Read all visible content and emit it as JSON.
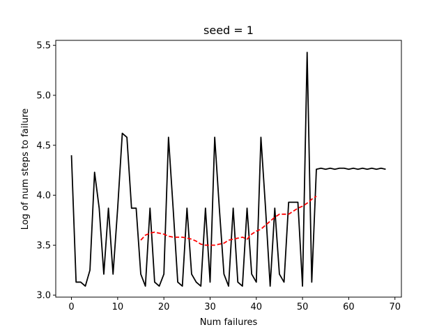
{
  "chart_data": {
    "type": "line",
    "title": "seed = 1",
    "xlabel": "Num failures",
    "ylabel": "Log of num steps to failure",
    "xlim": [
      -3.4,
      71.4
    ],
    "ylim": [
      2.98,
      5.55
    ],
    "x_ticks": [
      0,
      10,
      20,
      30,
      40,
      50,
      60,
      70
    ],
    "y_ticks": [
      3.0,
      3.5,
      4.0,
      4.5,
      5.0,
      5.5
    ],
    "grid": false,
    "series": [
      {
        "color": "#000000",
        "style": "solid",
        "x": [
          0,
          1,
          2,
          3,
          4,
          5,
          6,
          7,
          8,
          9,
          10,
          11,
          12,
          13,
          14,
          15,
          16,
          17,
          18,
          19,
          20,
          21,
          22,
          23,
          24,
          25,
          26,
          27,
          28,
          29,
          30,
          31,
          32,
          33,
          34,
          35,
          36,
          37,
          38,
          39,
          40,
          41,
          42,
          43,
          44,
          45,
          46,
          47,
          48,
          49,
          50,
          51,
          52,
          53,
          54,
          55,
          56,
          57,
          58,
          59,
          60,
          61,
          62,
          63,
          64,
          65,
          66,
          67,
          68
        ],
        "values": [
          4.4,
          3.13,
          3.13,
          3.09,
          3.25,
          4.23,
          3.87,
          3.21,
          3.87,
          3.21,
          3.87,
          4.62,
          4.58,
          3.87,
          3.87,
          3.21,
          3.09,
          3.87,
          3.13,
          3.09,
          3.21,
          4.58,
          3.87,
          3.13,
          3.09,
          3.87,
          3.21,
          3.13,
          3.09,
          3.87,
          3.13,
          4.58,
          3.87,
          3.21,
          3.09,
          3.87,
          3.13,
          3.09,
          3.87,
          3.21,
          3.13,
          4.58,
          3.87,
          3.09,
          3.87,
          3.21,
          3.13,
          3.93,
          3.93,
          3.93,
          3.09,
          5.43,
          3.13,
          4.26,
          4.27,
          4.26,
          4.27,
          4.26,
          4.27,
          4.27,
          4.26,
          4.27,
          4.26,
          4.27,
          4.26,
          4.27,
          4.26,
          4.27,
          4.26
        ]
      },
      {
        "color": "#ff0000",
        "style": "dashed",
        "x": [
          15,
          16,
          17,
          18,
          19,
          20,
          21,
          22,
          23,
          24,
          25,
          26,
          27,
          28,
          29,
          30,
          31,
          32,
          33,
          34,
          35,
          36,
          37,
          38,
          39,
          40,
          41,
          42,
          43,
          44,
          45,
          46,
          47,
          48,
          49,
          50,
          51,
          52,
          53
        ],
        "values": [
          3.55,
          3.6,
          3.62,
          3.63,
          3.62,
          3.61,
          3.59,
          3.58,
          3.58,
          3.58,
          3.57,
          3.56,
          3.54,
          3.51,
          3.5,
          3.5,
          3.5,
          3.51,
          3.52,
          3.55,
          3.56,
          3.57,
          3.58,
          3.56,
          3.61,
          3.64,
          3.66,
          3.7,
          3.74,
          3.78,
          3.81,
          3.81,
          3.81,
          3.84,
          3.87,
          3.89,
          3.92,
          3.96,
          3.99
        ]
      }
    ]
  }
}
